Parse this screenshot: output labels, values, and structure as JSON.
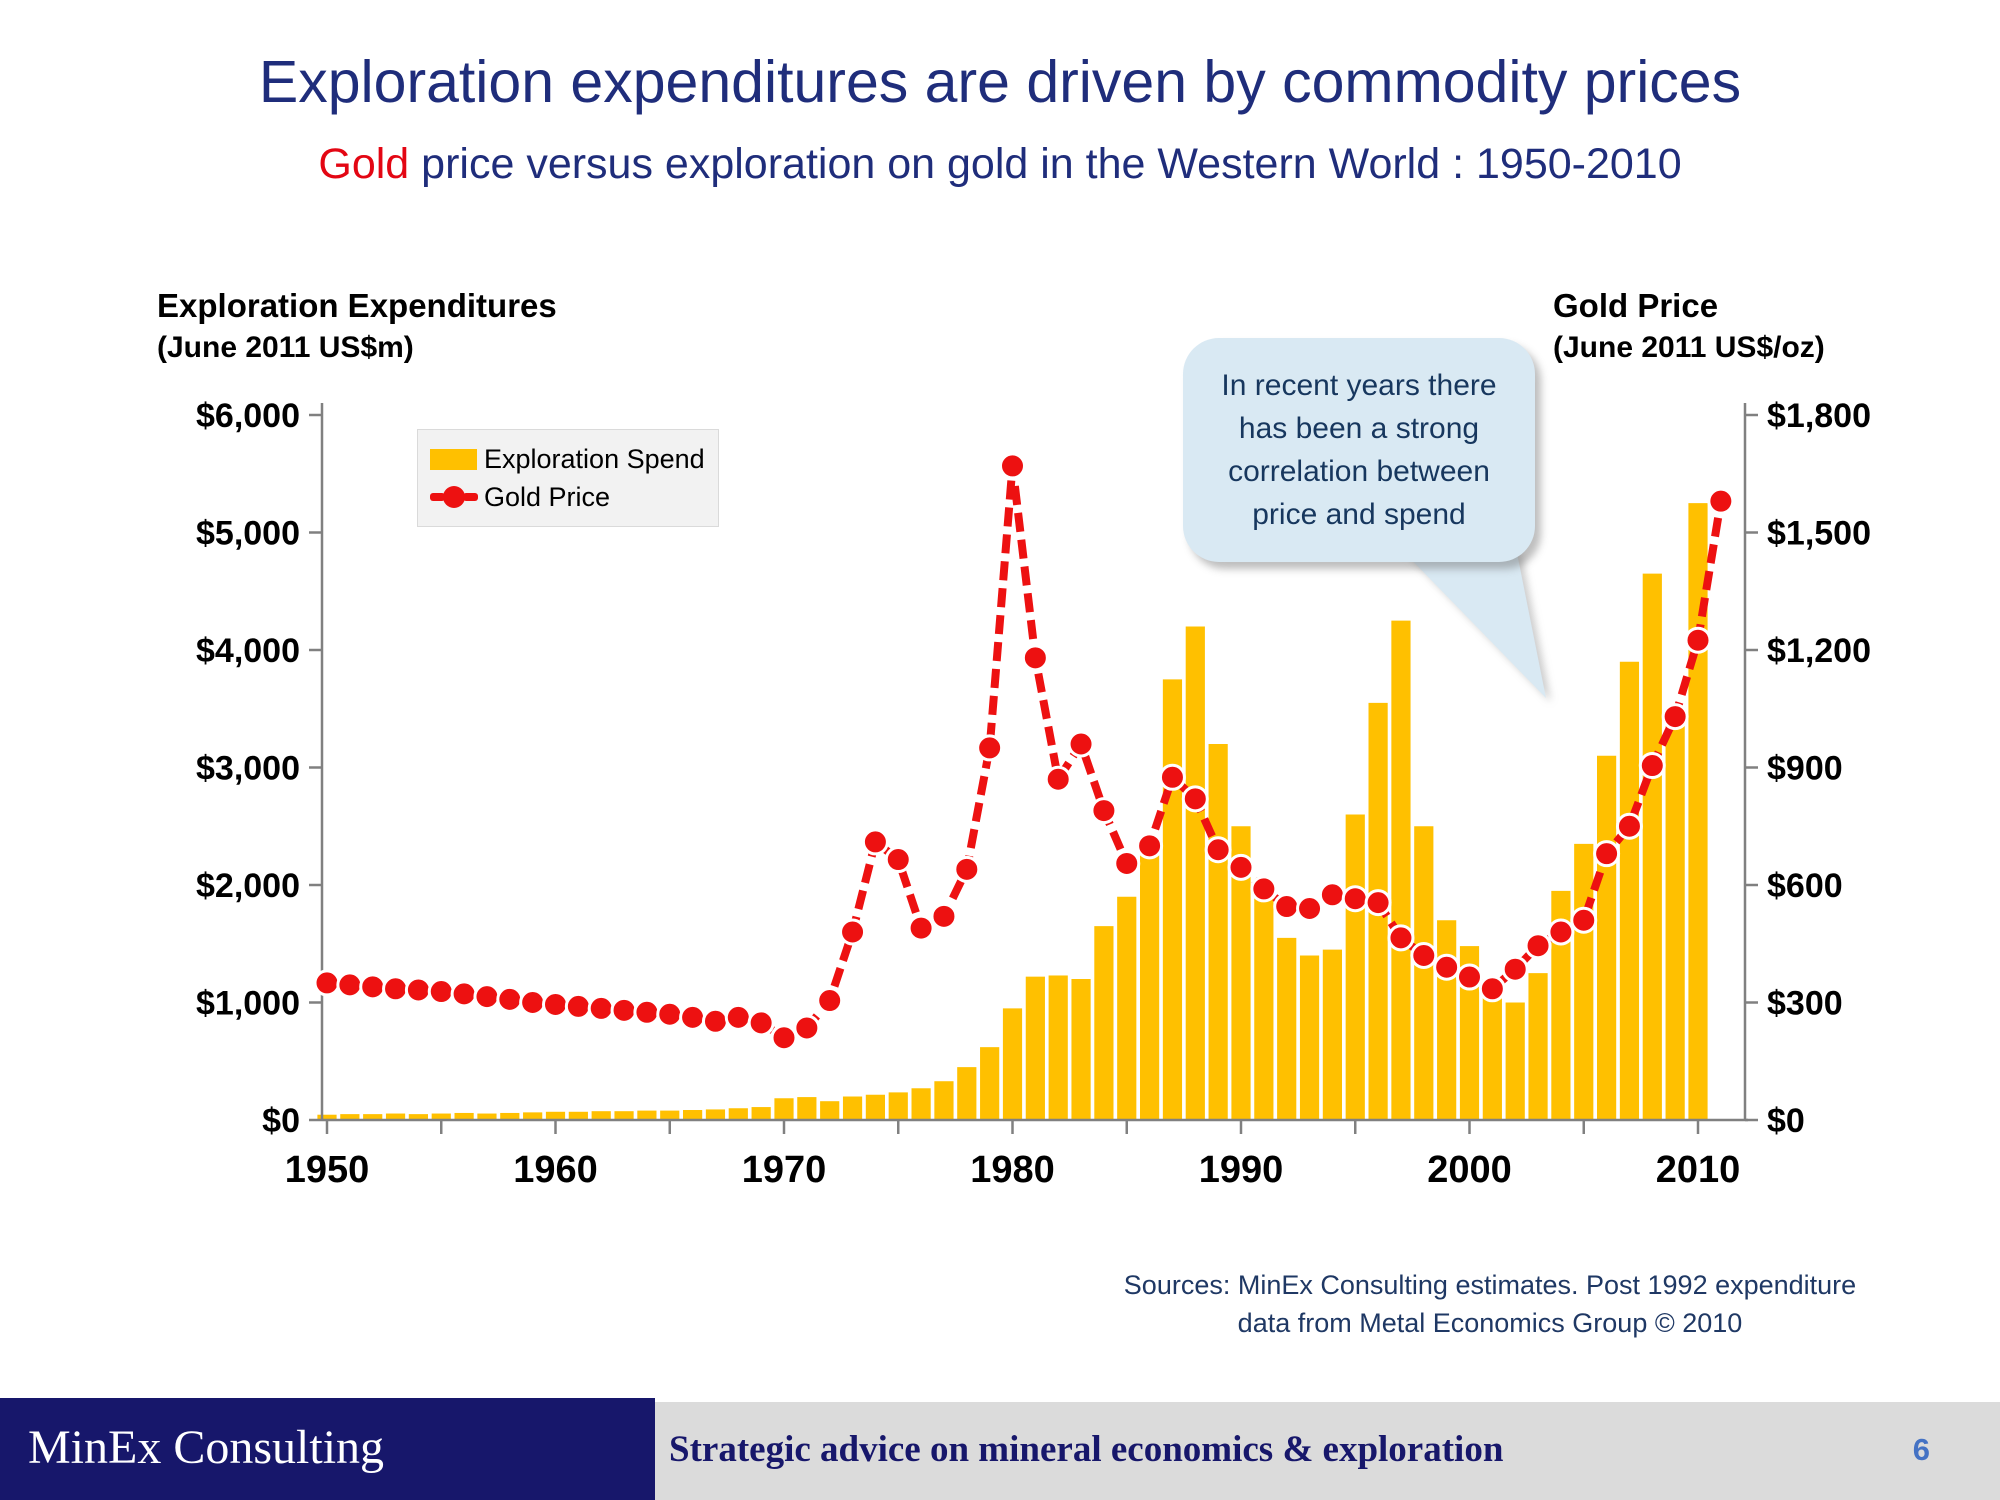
{
  "slide": {
    "title": "Exploration expenditures are driven by commodity prices",
    "subtitle_gold": "Gold",
    "subtitle_rest": " price versus exploration on gold in the Western World : 1950-2010",
    "callout_text": "In recent years there has been a strong correlation between price and spend",
    "sources_line1": "Sources: MinEx Consulting estimates. Post 1992 expenditure",
    "sources_line2": "data from Metal Economics Group © 2010"
  },
  "left_axis_title": {
    "line1": "Exploration Expenditures",
    "line2": "(June 2011 US$m)"
  },
  "right_axis_title": {
    "line1": "Gold Price",
    "line2": "(June 2011 US$/oz)"
  },
  "legend": {
    "bar_label": "Exploration Spend",
    "line_label": "Gold Price"
  },
  "footer": {
    "brand": "MinEx Consulting",
    "tagline": "Strategic advice on mineral economics & exploration",
    "page_number": "6"
  },
  "colors": {
    "title_navy": "#1F2D7B",
    "gold_red": "#E30613",
    "bar_yellow": "#FFC000",
    "line_red": "#ED1111",
    "axis_gray": "#808080",
    "callout_bg": "#D9E9F3",
    "callout_text": "#17375E",
    "legend_bg": "#F2F2F2",
    "sources_navy": "#1F3864",
    "footer_navy": "#17176B",
    "footer_gray": "#DBDBDB",
    "page_number_blue": "#4472C4"
  },
  "chart_data": {
    "type": "bar",
    "subtype": "combo bar+line, dual axis",
    "x": [
      1950,
      1951,
      1952,
      1953,
      1954,
      1955,
      1956,
      1957,
      1958,
      1959,
      1960,
      1961,
      1962,
      1963,
      1964,
      1965,
      1966,
      1967,
      1968,
      1969,
      1970,
      1971,
      1972,
      1973,
      1974,
      1975,
      1976,
      1977,
      1978,
      1979,
      1980,
      1981,
      1982,
      1983,
      1984,
      1985,
      1986,
      1987,
      1988,
      1989,
      1990,
      1991,
      1992,
      1993,
      1994,
      1995,
      1996,
      1997,
      1998,
      1999,
      2000,
      2001,
      2002,
      2003,
      2004,
      2005,
      2006,
      2007,
      2008,
      2009,
      2010,
      2011
    ],
    "series": [
      {
        "name": "Exploration Spend",
        "type": "bar",
        "axis": "left",
        "color": "#FFC000",
        "values": [
          45,
          50,
          50,
          55,
          50,
          55,
          60,
          55,
          60,
          65,
          70,
          70,
          75,
          75,
          80,
          80,
          85,
          90,
          100,
          110,
          185,
          195,
          160,
          200,
          215,
          235,
          270,
          330,
          450,
          620,
          950,
          1220,
          1230,
          1200,
          1650,
          1900,
          2400,
          3750,
          4200,
          3200,
          2500,
          1950,
          1550,
          1400,
          1450,
          2600,
          3550,
          4250,
          2500,
          1700,
          1480,
          1200,
          1000,
          1250,
          1950,
          2350,
          3100,
          3900,
          4650,
          3400,
          5250,
          null
        ]
      },
      {
        "name": "Gold Price",
        "type": "line",
        "axis": "right",
        "color": "#ED1111",
        "values": [
          350,
          345,
          340,
          335,
          332,
          328,
          322,
          315,
          308,
          300,
          295,
          290,
          285,
          280,
          275,
          270,
          262,
          252,
          262,
          248,
          210,
          235,
          305,
          480,
          710,
          665,
          490,
          520,
          640,
          950,
          1670,
          1180,
          870,
          960,
          790,
          655,
          700,
          875,
          820,
          690,
          645,
          590,
          545,
          540,
          575,
          565,
          555,
          465,
          420,
          390,
          365,
          335,
          385,
          445,
          480,
          510,
          680,
          750,
          905,
          1030,
          1225,
          1580
        ]
      }
    ],
    "left_axis": {
      "label": "Exploration Expenditures (June 2011 US$m)",
      "range": [
        0,
        6000
      ],
      "ticks": [
        0,
        1000,
        2000,
        3000,
        4000,
        5000,
        6000
      ],
      "tick_format": "$#,##0"
    },
    "right_axis": {
      "label": "Gold Price (June 2011 US$/oz)",
      "range": [
        0,
        1800
      ],
      "ticks": [
        0,
        300,
        600,
        900,
        1200,
        1500,
        1800
      ],
      "tick_format": "$#,##0"
    },
    "x_major_ticks": [
      1950,
      1960,
      1970,
      1980,
      1990,
      2000,
      2010
    ],
    "x_minor_tick_step": 5,
    "grid": false,
    "legend_position": "inside top-left",
    "annotation": "In recent years there has been a strong correlation between price and spend"
  }
}
